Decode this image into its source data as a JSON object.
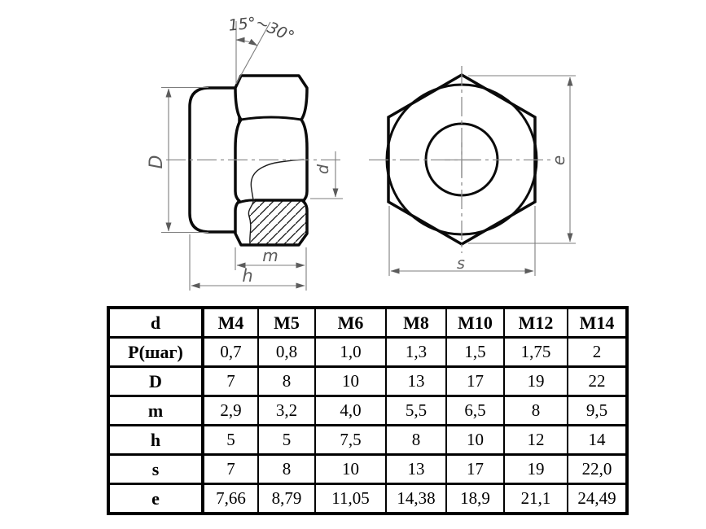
{
  "drawing": {
    "angle": {
      "label_a": "15°",
      "label_b": "~30°"
    },
    "side_view_labels": {
      "D": "D",
      "d": "d",
      "m": "m",
      "h": "h"
    },
    "front_view_labels": {
      "e": "e",
      "s": "s"
    }
  },
  "table": {
    "header": [
      "d",
      "M4",
      "M5",
      "M6",
      "M8",
      "M10",
      "M12",
      "M14"
    ],
    "rows": [
      {
        "label": "P(шаг)",
        "values": [
          "0,7",
          "0,8",
          "1,0",
          "1,3",
          "1,5",
          "1,75",
          "2"
        ]
      },
      {
        "label": "D",
        "values": [
          "7",
          "8",
          "10",
          "13",
          "17",
          "19",
          "22"
        ]
      },
      {
        "label": "m",
        "values": [
          "2,9",
          "3,2",
          "4,0",
          "5,5",
          "6,5",
          "8",
          "9,5"
        ]
      },
      {
        "label": "h",
        "values": [
          "5",
          "5",
          "7,5",
          "8",
          "10",
          "12",
          "14"
        ]
      },
      {
        "label": "s",
        "values": [
          "7",
          "8",
          "10",
          "13",
          "17",
          "19",
          "22,0"
        ]
      },
      {
        "label": "e",
        "values": [
          "7,66",
          "8,79",
          "11,05",
          "14,38",
          "18,9",
          "21,1",
          "24,49"
        ]
      }
    ]
  },
  "colors": {
    "outline": "#0a0a0a",
    "dimension_line": "#7d7d7d",
    "dimension_text": "#5c5c5c",
    "centerline": "#8f8f8f",
    "background": "#ffffff"
  }
}
